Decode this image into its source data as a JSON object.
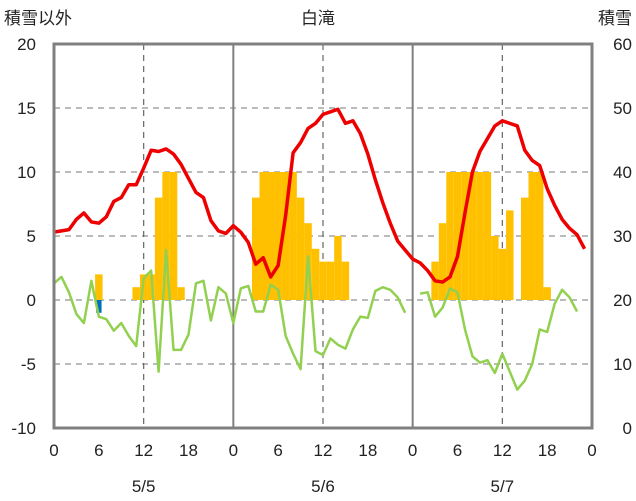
{
  "chart_data": {
    "type": "bar+line",
    "title": "白滝",
    "left_axis_label": "積雪以外",
    "right_axis_label": "積雪",
    "left_ylim": [
      -10,
      20
    ],
    "left_yticks": [
      "20",
      "15",
      "10",
      "5",
      "0",
      "-5",
      "-10"
    ],
    "right_ylim": [
      0,
      60
    ],
    "right_yticks": [
      "60",
      "50",
      "40",
      "30",
      "20",
      "10",
      "0"
    ],
    "x_hours": [
      0,
      72
    ],
    "x_tick_labels": [
      "0",
      "6",
      "12",
      "18",
      "0",
      "6",
      "12",
      "18",
      "0",
      "6",
      "12",
      "18",
      "0"
    ],
    "date_labels": [
      "5/5",
      "5/6",
      "5/7"
    ],
    "grid": "dashed",
    "colors": {
      "temperature": "#ee0000",
      "green_series": "#92d050",
      "yellow_bars": "#ffc000",
      "blue_bars": "#0070c0",
      "purple_line": "#7030a0",
      "frame": "#808080"
    },
    "yellow_bars": [
      [
        6,
        2
      ],
      [
        11,
        1
      ],
      [
        12,
        2
      ],
      [
        13,
        2
      ],
      [
        14,
        8
      ],
      [
        15,
        10
      ],
      [
        16,
        10
      ],
      [
        17,
        1
      ],
      [
        27,
        8
      ],
      [
        28,
        10
      ],
      [
        29,
        10
      ],
      [
        30,
        10
      ],
      [
        31,
        10
      ],
      [
        32,
        10
      ],
      [
        33,
        8
      ],
      [
        34,
        6
      ],
      [
        35,
        4
      ],
      [
        36,
        3
      ],
      [
        37,
        3
      ],
      [
        38,
        5
      ],
      [
        39,
        3
      ],
      [
        51,
        3
      ],
      [
        52,
        6
      ],
      [
        53,
        10
      ],
      [
        54,
        10
      ],
      [
        55,
        10
      ],
      [
        56,
        10
      ],
      [
        57,
        10
      ],
      [
        58,
        10
      ],
      [
        59,
        5
      ],
      [
        60,
        4
      ],
      [
        61,
        7
      ],
      [
        63,
        8
      ],
      [
        64,
        10
      ],
      [
        65,
        10
      ],
      [
        66,
        1
      ]
    ],
    "blue_bars": [
      [
        6,
        -1
      ]
    ],
    "temperature": [
      [
        0,
        5.3
      ],
      [
        1,
        5.4
      ],
      [
        2,
        5.5
      ],
      [
        3,
        6.3
      ],
      [
        4,
        6.8
      ],
      [
        5,
        6.1
      ],
      [
        6,
        6.0
      ],
      [
        7,
        6.5
      ],
      [
        8,
        7.7
      ],
      [
        9,
        8.0
      ],
      [
        10,
        9.0
      ],
      [
        11,
        9.0
      ],
      [
        12,
        10.3
      ],
      [
        13,
        11.7
      ],
      [
        14,
        11.6
      ],
      [
        15,
        11.8
      ],
      [
        16,
        11.4
      ],
      [
        17,
        10.6
      ],
      [
        18,
        9.5
      ],
      [
        19,
        8.4
      ],
      [
        20,
        8.0
      ],
      [
        21,
        6.2
      ],
      [
        22,
        5.4
      ],
      [
        23,
        5.2
      ],
      [
        24,
        5.8
      ],
      [
        25,
        5.3
      ],
      [
        26,
        4.5
      ],
      [
        27,
        2.8
      ],
      [
        28,
        3.3
      ],
      [
        29,
        1.8
      ],
      [
        30,
        2.7
      ],
      [
        31,
        6.6
      ],
      [
        32,
        11.5
      ],
      [
        33,
        12.3
      ],
      [
        34,
        13.4
      ],
      [
        35,
        13.8
      ],
      [
        36,
        14.5
      ],
      [
        37,
        14.7
      ],
      [
        38,
        14.9
      ],
      [
        39,
        13.8
      ],
      [
        40,
        14.0
      ],
      [
        41,
        13.0
      ],
      [
        42,
        11.4
      ],
      [
        43,
        9.4
      ],
      [
        44,
        7.6
      ],
      [
        45,
        6.0
      ],
      [
        46,
        4.6
      ],
      [
        47,
        3.9
      ],
      [
        48,
        3.2
      ],
      [
        49,
        2.9
      ],
      [
        50,
        2.3
      ],
      [
        51,
        1.5
      ],
      [
        52,
        1.4
      ],
      [
        53,
        1.8
      ],
      [
        54,
        3.4
      ],
      [
        55,
        6.8
      ],
      [
        56,
        10.0
      ],
      [
        57,
        11.6
      ],
      [
        58,
        12.6
      ],
      [
        59,
        13.6
      ],
      [
        60,
        14.0
      ],
      [
        61,
        13.8
      ],
      [
        62,
        13.6
      ],
      [
        63,
        11.7
      ],
      [
        64,
        10.9
      ],
      [
        65,
        10.5
      ],
      [
        66,
        8.7
      ],
      [
        67,
        7.4
      ],
      [
        68,
        6.3
      ],
      [
        69,
        5.6
      ],
      [
        70,
        5.1
      ],
      [
        71,
        4.0
      ]
    ],
    "green_series": [
      [
        0,
        1.3
      ],
      [
        1,
        1.8
      ],
      [
        2,
        0.6
      ],
      [
        3,
        -1.1
      ],
      [
        4,
        -1.8
      ],
      [
        5,
        1.5
      ],
      [
        6,
        -1.3
      ],
      [
        7,
        -1.5
      ],
      [
        8,
        -2.4
      ],
      [
        9,
        -1.8
      ],
      [
        10,
        -2.8
      ],
      [
        11,
        -3.6
      ],
      [
        12,
        1.7
      ],
      [
        13,
        2.3
      ],
      [
        14,
        -5.6
      ],
      [
        15,
        3.9
      ],
      [
        16,
        -3.9
      ],
      [
        17,
        -3.9
      ],
      [
        18,
        -2.7
      ],
      [
        19,
        1.3
      ],
      [
        20,
        1.5
      ],
      [
        21,
        -1.6
      ],
      [
        22,
        1.0
      ],
      [
        23,
        0.5
      ],
      [
        24,
        -1.8
      ],
      [
        25,
        0.9
      ],
      [
        26,
        1.1
      ],
      [
        27,
        -0.9
      ],
      [
        28,
        -0.9
      ],
      [
        29,
        1.2
      ],
      [
        30,
        0.8
      ],
      [
        31,
        -2.8
      ],
      [
        32,
        -4.2
      ],
      [
        33,
        -5.4
      ],
      [
        34,
        3.4
      ],
      [
        35,
        -4.0
      ],
      [
        36,
        -4.3
      ],
      [
        37,
        -3.0
      ],
      [
        38,
        -3.5
      ],
      [
        39,
        -3.8
      ],
      [
        40,
        -2.3
      ],
      [
        41,
        -1.3
      ],
      [
        42,
        -1.4
      ],
      [
        43,
        0.7
      ],
      [
        44,
        1.0
      ],
      [
        45,
        0.8
      ],
      [
        46,
        0.2
      ],
      [
        47,
        -1.0
      ],
      [
        48,
        null
      ],
      [
        49,
        0.5
      ],
      [
        50,
        0.6
      ],
      [
        51,
        -1.3
      ],
      [
        52,
        -0.6
      ],
      [
        53,
        0.9
      ],
      [
        54,
        0.6
      ],
      [
        55,
        -2.3
      ],
      [
        56,
        -4.4
      ],
      [
        57,
        -4.9
      ],
      [
        58,
        -4.7
      ],
      [
        59,
        -5.7
      ],
      [
        60,
        -4.2
      ],
      [
        61,
        -5.6
      ],
      [
        62,
        -7.0
      ],
      [
        63,
        -6.3
      ],
      [
        64,
        -5.0
      ],
      [
        65,
        -2.3
      ],
      [
        66,
        -2.5
      ],
      [
        67,
        -0.3
      ],
      [
        68,
        0.8
      ],
      [
        69,
        0.2
      ],
      [
        70,
        -0.9
      ]
    ],
    "purple_line": [
      [
        0,
        -10
      ],
      [
        72,
        -10
      ]
    ]
  }
}
